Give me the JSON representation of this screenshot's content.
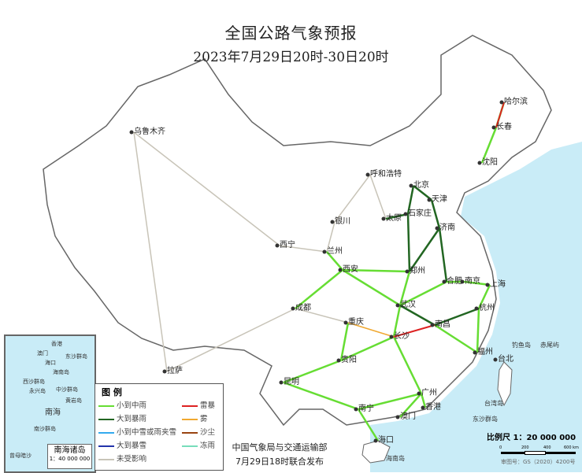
{
  "title": "全国公路气象预报",
  "subtitle": "2023年7月29日20时-30日20时",
  "cities": [
    "乌鲁木齐",
    "哈尔滨",
    "长春",
    "沈阳",
    "呼和浩特",
    "北京",
    "天津",
    "石家庄",
    "济南",
    "银川",
    "兰州",
    "西宁",
    "西安",
    "郑州",
    "合肥",
    "南京",
    "上海",
    "杭州",
    "武汉",
    "南昌",
    "长沙",
    "福州",
    "台北",
    "重庆",
    "成都",
    "贵阳",
    "昆明",
    "南宁",
    "广州",
    "香港",
    "澳门",
    "海口",
    "拉萨",
    "太原"
  ],
  "sea_labels": [
    "钓鱼岛",
    "赤尾屿",
    "台湾岛",
    "东沙群岛",
    "海南岛"
  ],
  "legend": {
    "heading": "图 例",
    "items": [
      {
        "label": "小到中雨",
        "color": "#66dd33"
      },
      {
        "label": "大到暴雨",
        "color": "#226622"
      },
      {
        "label": "小到中雪或雨夹雪",
        "color": "#33aaee"
      },
      {
        "label": "大到暴雪",
        "color": "#2233aa"
      },
      {
        "label": "未受影响",
        "color": "#c8c4b8"
      },
      {
        "label": "雷暴",
        "color": "#dd2222"
      },
      {
        "label": "雾",
        "color": "#f0a830"
      },
      {
        "label": "沙尘",
        "color": "#994411"
      },
      {
        "label": "冻雨",
        "color": "#77ddbb"
      }
    ]
  },
  "inset": {
    "labels": [
      "香港",
      "澳门",
      "海口",
      "海南岛",
      "东沙群岛",
      "西沙群岛",
      "永兴岛",
      "中沙群岛",
      "黄岩岛",
      "南海",
      "南沙群岛",
      "曾母暗沙"
    ],
    "title": "南海诸岛",
    "scale": "1：40 000 000"
  },
  "publisher": {
    "line1": "中国气象局与交通运输部",
    "line2": "7月29日18时联合发布"
  },
  "scale": {
    "label": "比例尺 1：20 000 000",
    "ticks": [
      "0",
      "200",
      "400",
      "600 km"
    ]
  },
  "map_number": "审图号：GS（2020）4200号",
  "colors": {
    "sea": "#c9ecf7",
    "land": "#ffffff",
    "border": "#666666"
  }
}
